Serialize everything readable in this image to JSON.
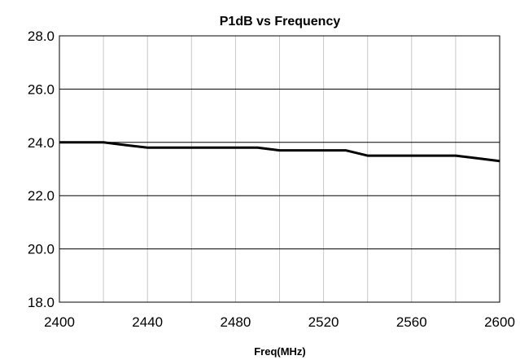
{
  "chart_data": {
    "type": "line",
    "title": "P1dB vs Frequency",
    "xlabel": "Freq(MHz)",
    "ylabel": "",
    "xlim": [
      2400,
      2600
    ],
    "ylim": [
      18.0,
      28.0
    ],
    "x_ticks": [
      2400,
      2440,
      2480,
      2520,
      2560,
      2600
    ],
    "x_tick_labels": [
      "2400",
      "2440",
      "2480",
      "2520",
      "2560",
      "2600"
    ],
    "y_ticks": [
      18.0,
      20.0,
      22.0,
      24.0,
      26.0,
      28.0
    ],
    "y_tick_labels": [
      "18.0",
      "20.0",
      "22.0",
      "24.0",
      "26.0",
      "28.0"
    ],
    "vertical_grid_step": 20,
    "grid": true,
    "series": [
      {
        "color": "#000000",
        "x": [
          2400,
          2410,
          2420,
          2430,
          2440,
          2450,
          2460,
          2470,
          2480,
          2490,
          2500,
          2510,
          2520,
          2530,
          2540,
          2550,
          2560,
          2570,
          2580,
          2590,
          2600
        ],
        "y": [
          24.0,
          24.0,
          24.0,
          23.9,
          23.8,
          23.8,
          23.8,
          23.8,
          23.8,
          23.8,
          23.7,
          23.7,
          23.7,
          23.7,
          23.5,
          23.5,
          23.5,
          23.5,
          23.5,
          23.4,
          23.3
        ]
      }
    ]
  }
}
